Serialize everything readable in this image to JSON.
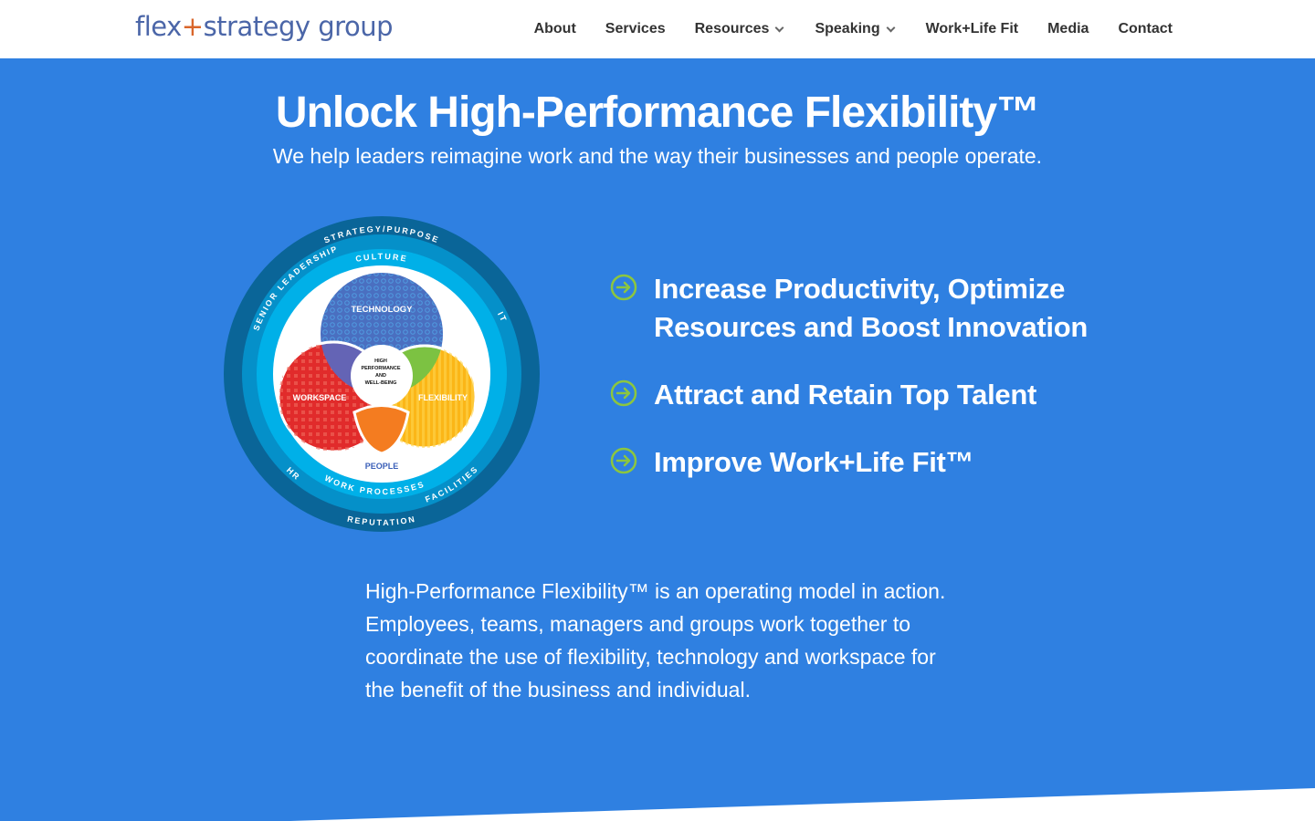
{
  "header": {
    "logo": {
      "part1": "flex",
      "plus": "+",
      "part2": "strategy group"
    },
    "nav": [
      {
        "label": "About",
        "dropdown": false
      },
      {
        "label": "Services",
        "dropdown": false
      },
      {
        "label": "Resources",
        "dropdown": true
      },
      {
        "label": "Speaking",
        "dropdown": true
      },
      {
        "label": "Work+Life Fit",
        "dropdown": false
      },
      {
        "label": "Media",
        "dropdown": false
      },
      {
        "label": "Contact",
        "dropdown": false
      }
    ]
  },
  "hero": {
    "title": "Unlock High-Performance Flexibility™",
    "subtitle": "We help leaders reimagine work and the way their businesses and people operate."
  },
  "diagram": {
    "outer": {
      "top": "STRATEGY/PURPOSE",
      "bottom": "REPUTATION"
    },
    "middle": {
      "senior": "SENIOR LEADERSHIP",
      "it": "IT",
      "hr": "HR",
      "facilities": "FACILITIES"
    },
    "inner": {
      "top": "CULTURE",
      "bottom": "WORK PROCESSES"
    },
    "circles": {
      "technology": "TECHNOLOGY",
      "workspace": "WORKSPACE",
      "flexibility": "FLEXIBILITY",
      "people": "PEOPLE"
    },
    "center": [
      "HIGH",
      "PERFORMANCE",
      "AND",
      "WELL-BEING"
    ]
  },
  "benefits": {
    "icon": "arrow-circle-right-icon",
    "icon_color": "#8cc63f",
    "items": [
      {
        "line1": "Increase Productivity, Optimize",
        "line2": "Resources and Boost Innovation"
      },
      {
        "line1": "Attract and Retain Top Talent"
      },
      {
        "line1": "Improve Work+Life Fit™"
      }
    ]
  },
  "description": "High-Performance Flexibility™ is an operating model in action. Employees, teams, managers and groups work together to coordinate the use of flexibility, technology and workspace for the benefit of the business and individual.",
  "colors": {
    "background": "#2f80e1",
    "logo": "#4b66a8",
    "logo_plus": "#d9662b"
  }
}
